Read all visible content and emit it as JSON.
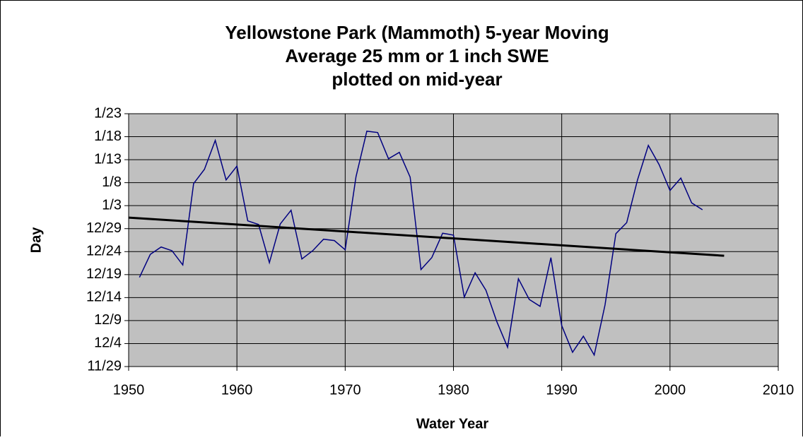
{
  "chart_data": {
    "type": "line",
    "title": [
      "Yellowstone Park (Mammoth) 5-year Moving",
      "Average 25 mm or 1 inch SWE",
      "plotted on mid-year"
    ],
    "xlabel": "Water Year",
    "ylabel": "Day",
    "xlim": [
      1950,
      2010
    ],
    "xticks": [
      1950,
      1960,
      1970,
      1980,
      1990,
      2000,
      2010
    ],
    "ylim": [
      60,
      115
    ],
    "yticks": [
      {
        "value": 60,
        "label": "11/29"
      },
      {
        "value": 65,
        "label": "12/4"
      },
      {
        "value": 70,
        "label": "12/9"
      },
      {
        "value": 75,
        "label": "12/14"
      },
      {
        "value": 80,
        "label": "12/19"
      },
      {
        "value": 85,
        "label": "12/24"
      },
      {
        "value": 90,
        "label": "12/29"
      },
      {
        "value": 95,
        "label": "1/3"
      },
      {
        "value": 100,
        "label": "1/8"
      },
      {
        "value": 105,
        "label": "1/13"
      },
      {
        "value": 110,
        "label": "1/18"
      },
      {
        "value": 115,
        "label": "1/23"
      }
    ],
    "grid": true,
    "x": [
      1951,
      1952,
      1953,
      1954,
      1955,
      1956,
      1957,
      1958,
      1959,
      1960,
      1961,
      1962,
      1963,
      1964,
      1965,
      1966,
      1967,
      1968,
      1969,
      1970,
      1971,
      1972,
      1973,
      1974,
      1975,
      1976,
      1977,
      1978,
      1979,
      1980,
      1981,
      1982,
      1983,
      1984,
      1985,
      1986,
      1987,
      1988,
      1989,
      1990,
      1991,
      1992,
      1993,
      1994,
      1995,
      1996,
      1997,
      1998,
      1999,
      2000,
      2001,
      2002,
      2003
    ],
    "series": [
      {
        "color": "#000080",
        "values": [
          79.4,
          84.4,
          86.0,
          85.2,
          82.1,
          99.8,
          102.9,
          109.2,
          100.6,
          103.6,
          91.7,
          90.9,
          82.6,
          91.0,
          94.0,
          83.4,
          85.2,
          87.7,
          87.4,
          85.4,
          101.3,
          111.2,
          110.9,
          105.2,
          106.6,
          101.2,
          81.1,
          83.7,
          89.0,
          88.6,
          75.1,
          80.4,
          76.6,
          69.8,
          64.2,
          79.1,
          74.6,
          73.1,
          83.7,
          68.9,
          63.1,
          66.6,
          62.5,
          73.4,
          88.9,
          91.3,
          100.6,
          108.1,
          103.9,
          98.3,
          101.0,
          95.6,
          94.1
        ]
      }
    ],
    "trendline": {
      "color": "#000000",
      "x": [
        1950,
        2005
      ],
      "values": [
        92.4,
        84.1
      ]
    }
  }
}
